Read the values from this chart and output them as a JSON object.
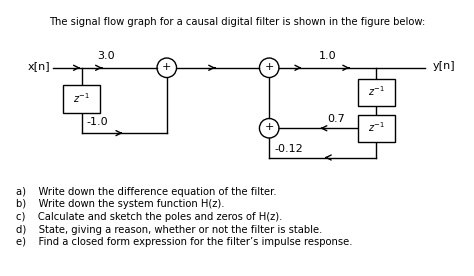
{
  "title": "The signal flow graph for a causal digital filter is shown in the figure below:",
  "xn_label": "x[n]",
  "yn_label": "y[n]",
  "gain_3": "3.0",
  "gain_1": "1.0",
  "feedback_left": "-1.0",
  "feedback_mid": "0.7",
  "feedback_bot": "-0.12",
  "questions": [
    "a)    Write down the difference equation of the filter.",
    "b)    Write down the system function H(z).",
    "c)    Calculate and sketch the poles and zeros of H(z).",
    "d)    State, giving a reason, whether or not the filter is stable.",
    "e)    Find a closed form expression for the filter’s impulse response."
  ],
  "line_color": "#000000",
  "bg_color": "#ffffff"
}
